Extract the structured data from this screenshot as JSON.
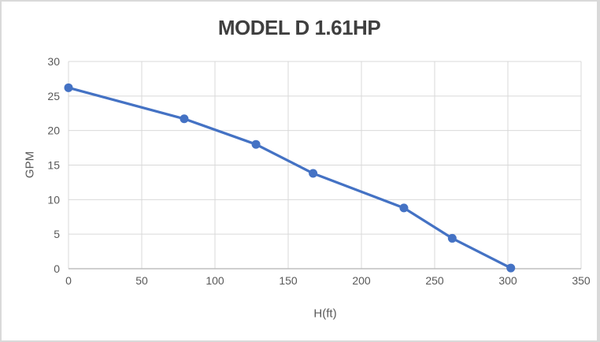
{
  "chart_data": {
    "type": "line",
    "title": "MODEL D 1.61HP",
    "xlabel": "H(ft)",
    "ylabel": "GPM",
    "xlim": [
      0,
      350
    ],
    "ylim": [
      0,
      30
    ],
    "x_ticks": [
      0,
      50,
      100,
      150,
      200,
      250,
      300,
      350
    ],
    "y_ticks": [
      0,
      5,
      10,
      15,
      20,
      25,
      30
    ],
    "grid": true,
    "legend_position": "none",
    "series": [
      {
        "name": "MODEL D 1.61HP",
        "marker": "circle",
        "color": "#4472C4",
        "points": [
          [
            0,
            26.2
          ],
          [
            79,
            21.7
          ],
          [
            128,
            18.0
          ],
          [
            167,
            13.8
          ],
          [
            229,
            8.8
          ],
          [
            262,
            4.4
          ],
          [
            302,
            0.1
          ]
        ]
      }
    ],
    "colors": {
      "series_line": "#4472C4",
      "gridline": "#d9d9d9",
      "axis_line": "#bfbfbf",
      "tick_label": "#595959",
      "axis_title": "#595959",
      "chart_title": "#3f3f3f",
      "background": "#ffffff",
      "border": "#d9d9d9"
    }
  }
}
